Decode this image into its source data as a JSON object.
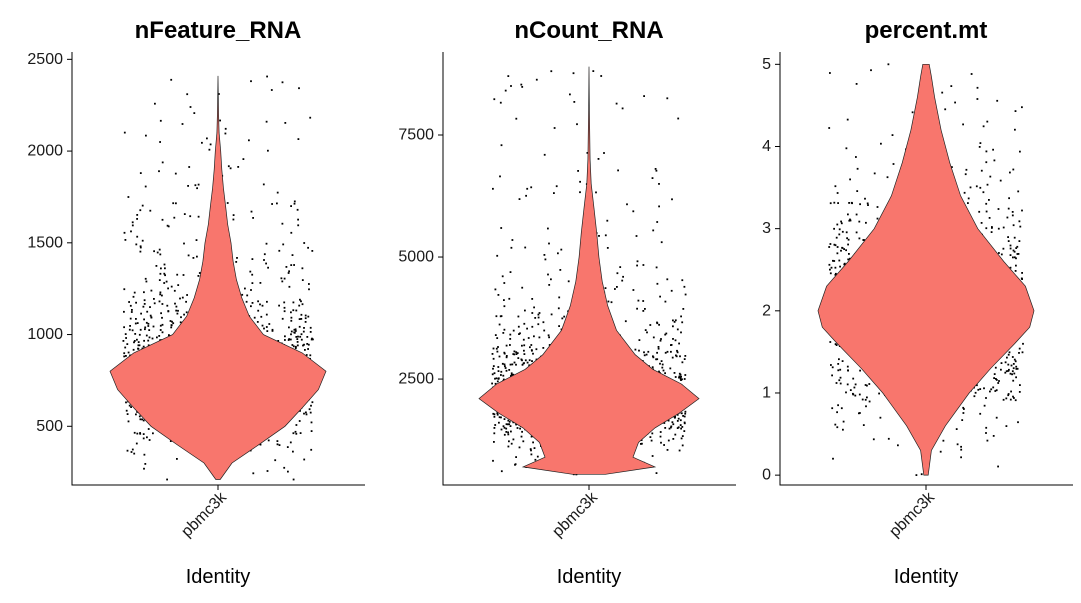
{
  "chart_data": [
    {
      "type": "violin",
      "title": "nFeature_RNA",
      "categories": [
        "pbmc3k"
      ],
      "xlabel": "Identity",
      "ylabel": "",
      "ylim": [
        180,
        2540
      ],
      "yticks": [
        500,
        1000,
        1500,
        2000,
        2500
      ],
      "violin_range": [
        210,
        2410
      ],
      "violin_profile": [
        [
          210,
          0.02
        ],
        [
          300,
          0.13
        ],
        [
          400,
          0.38
        ],
        [
          500,
          0.62
        ],
        [
          600,
          0.78
        ],
        [
          700,
          0.93
        ],
        [
          800,
          1.0
        ],
        [
          900,
          0.78
        ],
        [
          1000,
          0.42
        ],
        [
          1100,
          0.29
        ],
        [
          1200,
          0.22
        ],
        [
          1300,
          0.17
        ],
        [
          1400,
          0.14
        ],
        [
          1500,
          0.12
        ],
        [
          1600,
          0.09
        ],
        [
          1700,
          0.07
        ],
        [
          1800,
          0.05
        ],
        [
          1900,
          0.035
        ],
        [
          2000,
          0.025
        ],
        [
          2100,
          0.01
        ],
        [
          2200,
          0.006
        ],
        [
          2410,
          0.0
        ]
      ],
      "points": {
        "n": 1400,
        "mode": 820,
        "spread": 160,
        "min": 210,
        "max": 2420,
        "tail_scale": 350,
        "tail_frac": 0.45
      }
    },
    {
      "type": "violin",
      "title": "nCount_RNA",
      "categories": [
        "pbmc3k"
      ],
      "xlabel": "Identity",
      "ylabel": "",
      "ylim": [
        330,
        9200
      ],
      "yticks": [
        2500,
        5000,
        7500
      ],
      "violin_range": [
        550,
        8900
      ],
      "violin_profile": [
        [
          550,
          0.15
        ],
        [
          700,
          0.6
        ],
        [
          900,
          0.4
        ],
        [
          1200,
          0.45
        ],
        [
          1500,
          0.6
        ],
        [
          1800,
          0.82
        ],
        [
          2100,
          1.0
        ],
        [
          2400,
          0.84
        ],
        [
          2700,
          0.58
        ],
        [
          3000,
          0.42
        ],
        [
          3500,
          0.25
        ],
        [
          4000,
          0.17
        ],
        [
          4500,
          0.12
        ],
        [
          5000,
          0.09
        ],
        [
          5500,
          0.07
        ],
        [
          6000,
          0.045
        ],
        [
          6500,
          0.02
        ],
        [
          7000,
          0.01
        ],
        [
          8000,
          0.004
        ],
        [
          8900,
          0.0
        ]
      ],
      "points": {
        "n": 1400,
        "mode": 2150,
        "spread": 450,
        "min": 550,
        "max": 8900,
        "tail_scale": 1000,
        "tail_frac": 0.45
      }
    },
    {
      "type": "violin",
      "title": "percent.mt",
      "categories": [
        "pbmc3k"
      ],
      "xlabel": "Identity",
      "ylabel": "",
      "ylim": [
        -0.12,
        5.15
      ],
      "yticks": [
        0,
        1,
        2,
        3,
        4,
        5
      ],
      "violin_range": [
        0,
        5
      ],
      "violin_profile": [
        [
          0,
          0.02
        ],
        [
          0.3,
          0.05
        ],
        [
          0.6,
          0.18
        ],
        [
          1.0,
          0.4
        ],
        [
          1.3,
          0.6
        ],
        [
          1.6,
          0.82
        ],
        [
          1.8,
          0.96
        ],
        [
          2.0,
          1.0
        ],
        [
          2.3,
          0.92
        ],
        [
          2.6,
          0.72
        ],
        [
          3.0,
          0.48
        ],
        [
          3.4,
          0.32
        ],
        [
          3.8,
          0.22
        ],
        [
          4.2,
          0.14
        ],
        [
          4.6,
          0.08
        ],
        [
          4.85,
          0.05
        ],
        [
          5.0,
          0.03
        ]
      ],
      "points": {
        "n": 1400,
        "mode": 2.0,
        "spread": 0.65,
        "min": 0.0,
        "max": 5.0,
        "tail_scale": 0.9,
        "tail_frac": 0.15
      }
    }
  ]
}
